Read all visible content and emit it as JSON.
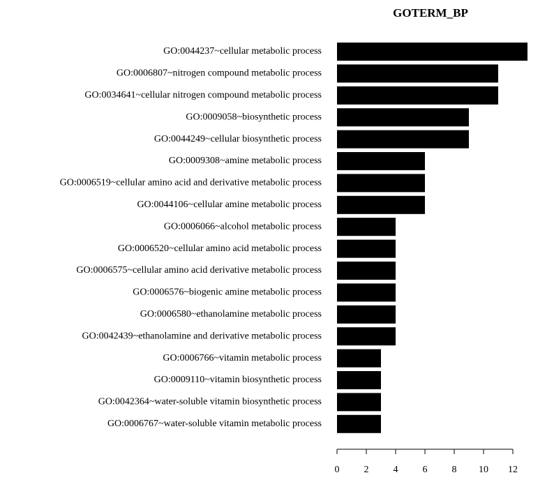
{
  "chart_data": {
    "type": "barh",
    "title": "GOTERM_BP",
    "categories": [
      "GO:0044237~cellular metabolic process",
      "GO:0006807~nitrogen compound metabolic process",
      "GO:0034641~cellular nitrogen compound metabolic process",
      "GO:0009058~biosynthetic process",
      "GO:0044249~cellular biosynthetic process",
      "GO:0009308~amine metabolic process",
      "GO:0006519~cellular amino acid and derivative metabolic process",
      "GO:0044106~cellular amine metabolic process",
      "GO:0006066~alcohol metabolic process",
      "GO:0006520~cellular amino acid metabolic process",
      "GO:0006575~cellular amino acid derivative metabolic process",
      "GO:0006576~biogenic amine metabolic process",
      "GO:0006580~ethanolamine metabolic process",
      "GO:0042439~ethanolamine and derivative metabolic process",
      "GO:0006766~vitamin metabolic process",
      "GO:0009110~vitamin biosynthetic process",
      "GO:0042364~water-soluble vitamin biosynthetic process",
      "GO:0006767~water-soluble vitamin metabolic process"
    ],
    "values": [
      13,
      11,
      11,
      9,
      9,
      6,
      6,
      6,
      4,
      4,
      4,
      4,
      4,
      4,
      3,
      3,
      3,
      3
    ],
    "color": "#000000",
    "xlim": [
      0,
      12
    ],
    "xticks": [
      0,
      2,
      4,
      6,
      8,
      10,
      12
    ]
  }
}
